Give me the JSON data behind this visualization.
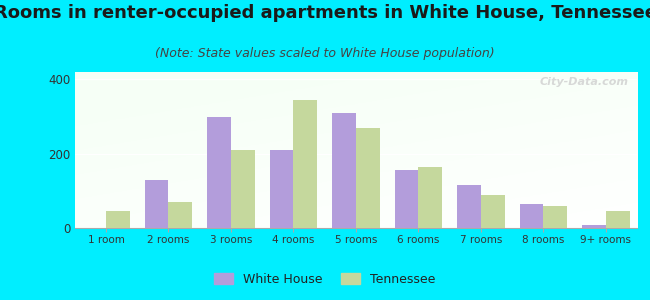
{
  "title": "Rooms in renter-occupied apartments in White House, Tennessee",
  "subtitle": "(Note: State values scaled to White House population)",
  "categories": [
    "1 room",
    "2 rooms",
    "3 rooms",
    "4 rooms",
    "5 rooms",
    "6 rooms",
    "7 rooms",
    "8 rooms",
    "9+ rooms"
  ],
  "white_house": [
    0,
    130,
    300,
    210,
    310,
    155,
    115,
    65,
    8
  ],
  "tennessee": [
    45,
    70,
    210,
    345,
    270,
    165,
    90,
    60,
    45
  ],
  "color_wh": "#b39ddb",
  "color_tn": "#c5d89d",
  "background_outer": "#00eeff",
  "ylim": [
    0,
    420
  ],
  "yticks": [
    0,
    200,
    400
  ],
  "bar_width": 0.38,
  "title_fontsize": 13,
  "subtitle_fontsize": 9,
  "legend_labels": [
    "White House",
    "Tennessee"
  ],
  "watermark": "City-Data.com"
}
